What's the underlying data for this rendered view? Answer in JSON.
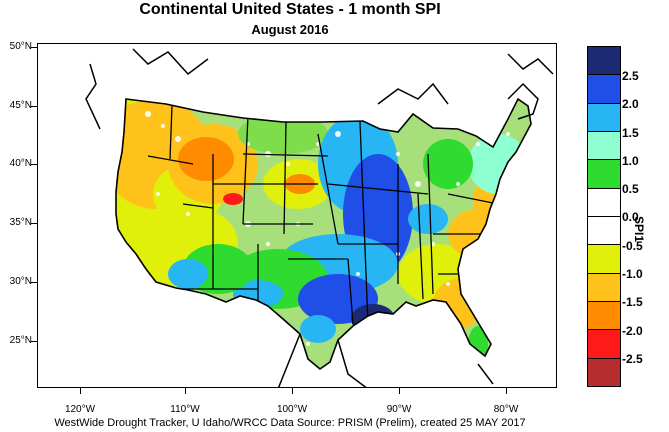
{
  "title": "Continental United States - 1 month SPI",
  "subtitle": "August 2016",
  "source": "WestWide Drought Tracker, U Idaho/WRCC Data Source: PRISM (Prelim), created 25 MAY 2017",
  "legend": {
    "title": "SPI1",
    "labels": [
      "2.5",
      "2.0",
      "1.5",
      "1.0",
      "0.5",
      "0.0",
      "-0.5",
      "-1.0",
      "-1.5",
      "-2.0",
      "-2.5"
    ],
    "colors": [
      "#1c2a74",
      "#1f4fe6",
      "#27b5f4",
      "#8effd0",
      "#2fdb2f",
      "#ffffff",
      "#ffffff",
      "#e1f00a",
      "#ffc21a",
      "#ff8c00",
      "#ff1a1a",
      "#b52d2d"
    ]
  },
  "axes": {
    "lat_labels": [
      "50°N",
      "45°N",
      "40°N",
      "35°N",
      "30°N",
      "25°N"
    ],
    "lon_labels": [
      "120°W",
      "110°W",
      "100°W",
      "90°W",
      "80°W"
    ]
  }
}
